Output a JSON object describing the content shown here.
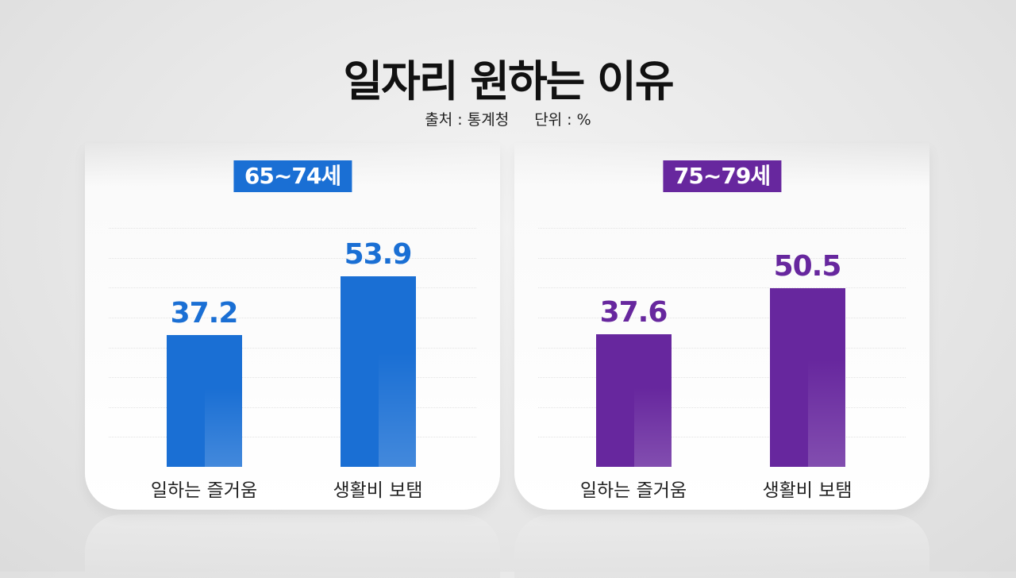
{
  "title": "일자리 원하는 이유",
  "source": "출처 : 통계청",
  "unit": "단위 : %",
  "chart_data": [
    {
      "type": "bar",
      "title": "65~74세",
      "categories": [
        "일하는 즐거움",
        "생활비 보탬"
      ],
      "values": [
        37.2,
        53.9
      ],
      "color": "#1a6fd4",
      "ylim": [
        0,
        70
      ],
      "grid": true
    },
    {
      "type": "bar",
      "title": "75~79세",
      "categories": [
        "일하는 즐거움",
        "생활비 보탬"
      ],
      "values": [
        37.6,
        50.5
      ],
      "color": "#67279e",
      "ylim": [
        0,
        70
      ],
      "grid": true
    }
  ]
}
